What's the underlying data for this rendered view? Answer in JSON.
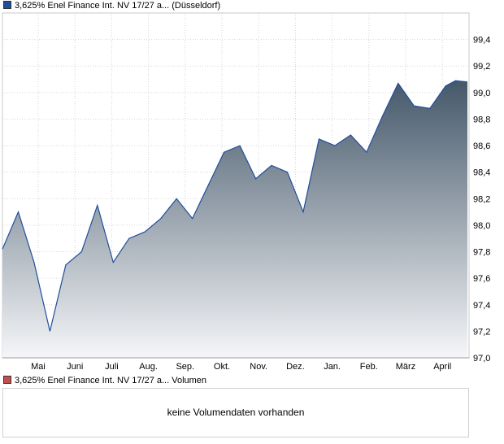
{
  "legend": {
    "price_series": "3,625% Enel Finance Int. NV 17/27 a... (Düsseldorf)",
    "price_color": "#1f4e9c",
    "volume_series": "3,625% Enel Finance Int. NV 17/27 a... Volumen",
    "volume_color": "#c0504d"
  },
  "volume": {
    "message": "keine Volumendaten vorhanden"
  },
  "chart_data": {
    "type": "area",
    "title": "",
    "xlabel": "",
    "ylabel": "",
    "ylim": [
      97.0,
      99.6
    ],
    "y_ticks": [
      "97,0",
      "97,2",
      "97,4",
      "97,6",
      "97,8",
      "98,0",
      "98,2",
      "98,4",
      "98,6",
      "98,8",
      "99,0",
      "99,2",
      "99,4"
    ],
    "x_ticks": [
      "Mai",
      "Juni",
      "Juli",
      "Aug.",
      "Sep.",
      "Okt.",
      "Nov.",
      "Dez.",
      "Jan.",
      "Feb.",
      "März",
      "April"
    ],
    "grid": true,
    "line_color": "#1f4e9c",
    "fill_top_color": "#45586a",
    "fill_bottom_color": "#f5f6f8",
    "series": [
      {
        "x": [
          0,
          0.4,
          0.8,
          1.2,
          1.6,
          2,
          2.4,
          2.8,
          3.2,
          3.6,
          4,
          4.4,
          4.8,
          5.2,
          5.6,
          6,
          6.4,
          6.8,
          7.2,
          7.6,
          8,
          8.4,
          8.8,
          9.2,
          9.6,
          10,
          10.4,
          10.8,
          11.2,
          11.45,
          11.75
        ],
        "values": [
          97.82,
          98.1,
          97.72,
          97.2,
          97.7,
          97.8,
          98.15,
          97.72,
          97.9,
          97.95,
          98.05,
          98.2,
          98.05,
          98.3,
          98.55,
          98.6,
          98.35,
          98.45,
          98.4,
          98.1,
          98.65,
          98.6,
          98.68,
          98.55,
          98.82,
          99.07,
          98.9,
          98.88,
          99.05,
          99.09,
          99.08
        ]
      }
    ]
  }
}
